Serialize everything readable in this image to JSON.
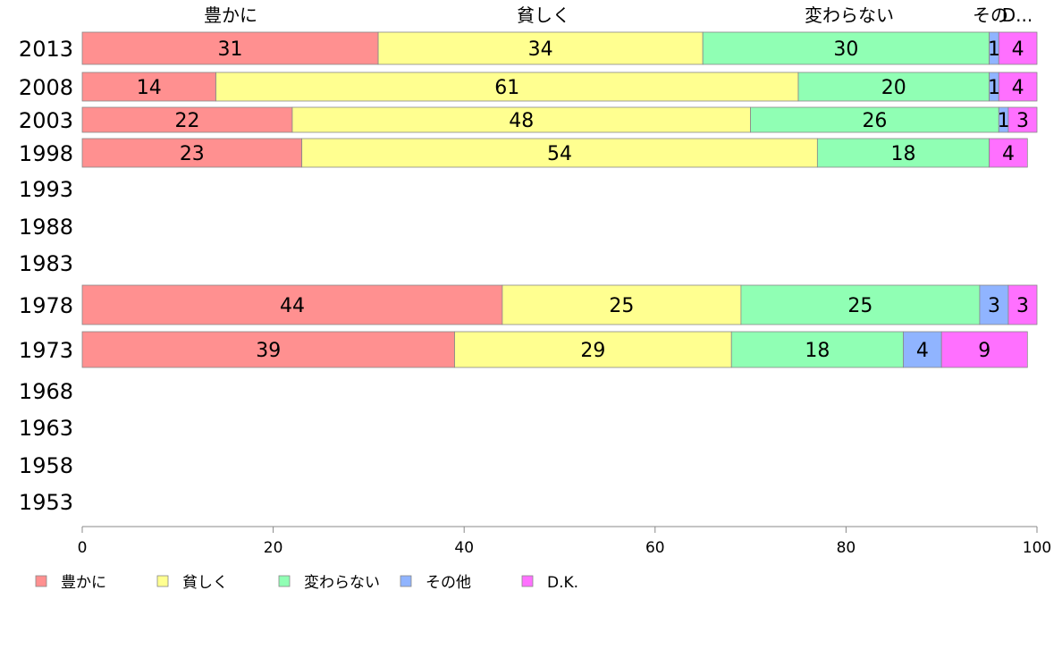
{
  "chart_data": {
    "type": "bar",
    "orientation": "horizontal",
    "stacked": true,
    "categories": [
      "2013",
      "2008",
      "2003",
      "1998",
      "1993",
      "1988",
      "1983",
      "1978",
      "1973",
      "1968",
      "1963",
      "1958",
      "1953"
    ],
    "series": [
      {
        "name": "豊かに",
        "color": "#ff9090",
        "values": [
          31,
          14,
          22,
          23,
          null,
          null,
          null,
          44,
          39,
          null,
          null,
          null,
          null
        ]
      },
      {
        "name": "貧しく",
        "color": "#ffff90",
        "values": [
          34,
          61,
          48,
          54,
          null,
          null,
          null,
          25,
          29,
          null,
          null,
          null,
          null
        ]
      },
      {
        "name": "変わらない",
        "color": "#90ffb4",
        "values": [
          30,
          20,
          26,
          18,
          null,
          null,
          null,
          25,
          18,
          null,
          null,
          null,
          null
        ]
      },
      {
        "name": "その他",
        "color": "#90b4ff",
        "values": [
          1,
          1,
          1,
          0,
          null,
          null,
          null,
          3,
          4,
          null,
          null,
          null,
          null
        ]
      },
      {
        "name": "D.K.",
        "color": "#ff70ff",
        "values": [
          4,
          4,
          3,
          4,
          null,
          null,
          null,
          3,
          9,
          null,
          null,
          null,
          null
        ]
      }
    ],
    "top_labels": [
      "豊かに",
      "貧しく",
      "変わらない",
      "その",
      "D..."
    ],
    "xlim": [
      0,
      100
    ],
    "xticks": [
      "0",
      "20",
      "40",
      "60",
      "80",
      "100"
    ],
    "grid": false,
    "legend_position": "bottom-left"
  }
}
